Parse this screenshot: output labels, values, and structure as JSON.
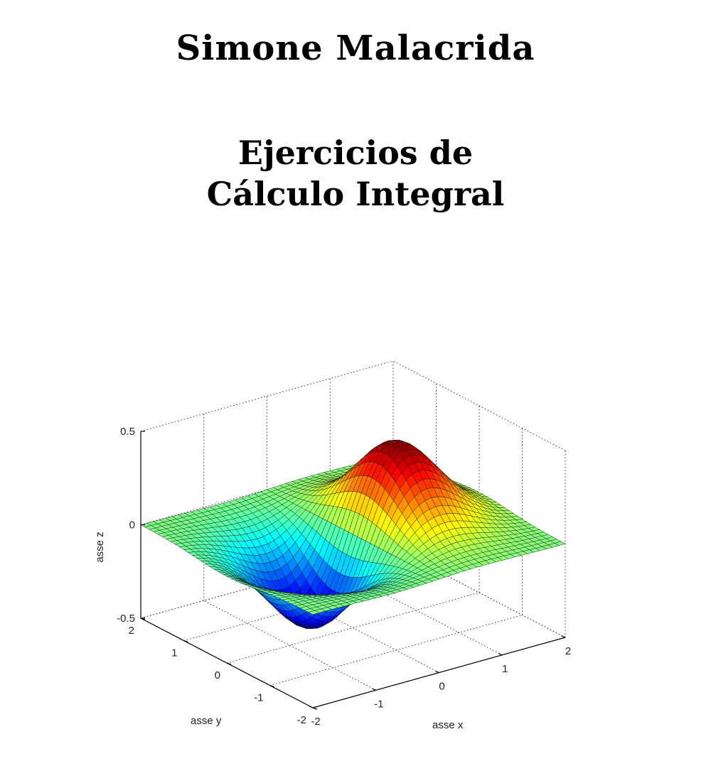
{
  "cover": {
    "author": "Simone Malacrida",
    "title_lines": [
      "Ejercicios de",
      "Cálculo Integral"
    ]
  },
  "chart_data": {
    "type": "surface",
    "title": "",
    "xlabel": "asse x",
    "ylabel": "asse y",
    "zlabel": "asse z",
    "xlim": [
      -2,
      2
    ],
    "ylim": [
      -2,
      2
    ],
    "zlim": [
      -0.5,
      0.5
    ],
    "x_ticks": [
      "-2",
      "-1",
      "0",
      "1",
      "2"
    ],
    "y_ticks": [
      "-2",
      "-1",
      "0",
      "1",
      "2"
    ],
    "z_ticks": [
      "-0.5",
      "0",
      "0.5"
    ],
    "grid": true,
    "colormap": "jet",
    "function_form": "z = x·exp(-x² - y²)",
    "grid_resolution": 40
  }
}
